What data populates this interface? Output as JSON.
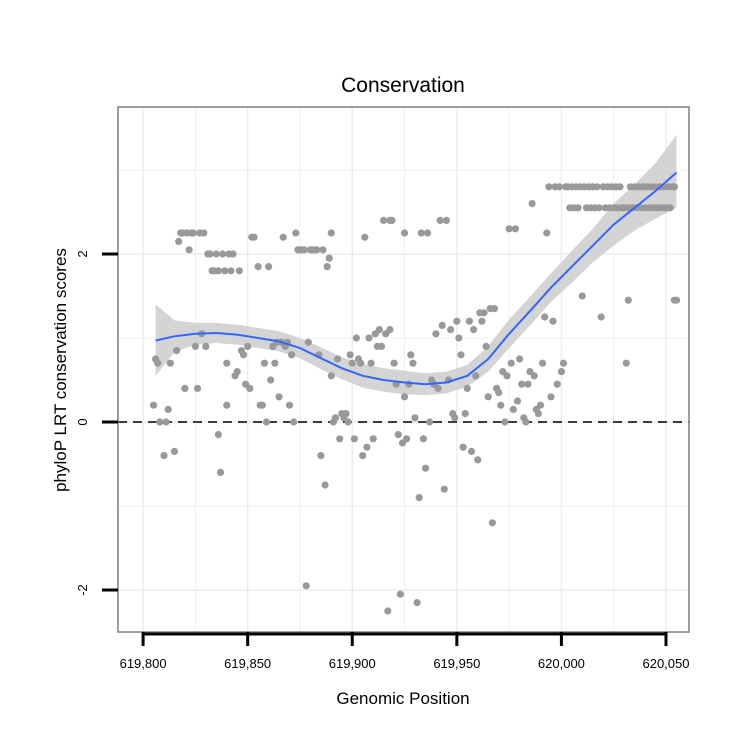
{
  "chart_data": {
    "type": "scatter",
    "title": "Conservation",
    "xlabel": "Genomic Position",
    "ylabel": "phyloP LRT conservation scores",
    "xlim": [
      619788,
      620061
    ],
    "ylim": [
      -2.5,
      3.75
    ],
    "xticks": [
      619800,
      619850,
      619900,
      619950,
      620000,
      620050
    ],
    "xtick_labels": [
      "619,800",
      "619,850",
      "619,900",
      "619,950",
      "620,000",
      "620,050"
    ],
    "yticks": [
      -2,
      0,
      2
    ],
    "ytick_labels": [
      "-2",
      "0",
      "2"
    ],
    "reference_line": {
      "y": 0,
      "style": "dashed"
    },
    "grid": true,
    "colors": {
      "points": "#999999",
      "smooth": "#3366ff",
      "band": "#d4d4d4",
      "panel_border": "#7f7f7f",
      "grid": "#ececec"
    },
    "points": [
      [
        619805,
        0.2
      ],
      [
        619806,
        0.75
      ],
      [
        619807,
        0.7
      ],
      [
        619808,
        0.0
      ],
      [
        619810,
        -0.4
      ],
      [
        619811,
        0.0
      ],
      [
        619812,
        0.15
      ],
      [
        619813,
        0.7
      ],
      [
        619815,
        -0.35
      ],
      [
        619816,
        0.85
      ],
      [
        619817,
        2.15
      ],
      [
        619818,
        2.25
      ],
      [
        619819,
        2.25
      ],
      [
        619820,
        0.4
      ],
      [
        619821,
        2.25
      ],
      [
        619822,
        2.05
      ],
      [
        619823,
        2.25
      ],
      [
        619824,
        2.25
      ],
      [
        619825,
        0.9
      ],
      [
        619826,
        0.4
      ],
      [
        619827,
        2.25
      ],
      [
        619828,
        1.05
      ],
      [
        619829,
        2.25
      ],
      [
        619830,
        0.9
      ],
      [
        619831,
        2.0
      ],
      [
        619832,
        2.0
      ],
      [
        619833,
        1.8
      ],
      [
        619834,
        1.8
      ],
      [
        619835,
        2.0
      ],
      [
        619836,
        -0.15
      ],
      [
        619836,
        1.8
      ],
      [
        619837,
        -0.6
      ],
      [
        619838,
        2.0
      ],
      [
        619839,
        1.8
      ],
      [
        619840,
        0.7
      ],
      [
        619840,
        0.2
      ],
      [
        619841,
        2.0
      ],
      [
        619842,
        1.8
      ],
      [
        619843,
        2.0
      ],
      [
        619844,
        0.55
      ],
      [
        619845,
        0.6
      ],
      [
        619846,
        1.8
      ],
      [
        619847,
        0.85
      ],
      [
        619848,
        0.8
      ],
      [
        619849,
        0.45
      ],
      [
        619850,
        0.9
      ],
      [
        619851,
        0.4
      ],
      [
        619852,
        2.2
      ],
      [
        619853,
        2.2
      ],
      [
        619855,
        1.85
      ],
      [
        619856,
        0.2
      ],
      [
        619857,
        0.2
      ],
      [
        619858,
        0.7
      ],
      [
        619859,
        0.0
      ],
      [
        619860,
        1.85
      ],
      [
        619861,
        0.5
      ],
      [
        619862,
        0.9
      ],
      [
        619863,
        0.7
      ],
      [
        619864,
        0.95
      ],
      [
        619865,
        0.3
      ],
      [
        619866,
        0.95
      ],
      [
        619867,
        2.2
      ],
      [
        619868,
        0.9
      ],
      [
        619869,
        0.95
      ],
      [
        619870,
        0.2
      ],
      [
        619871,
        0.8
      ],
      [
        619872,
        0.0
      ],
      [
        619873,
        2.25
      ],
      [
        619874,
        2.05
      ],
      [
        619875,
        2.05
      ],
      [
        619876,
        2.05
      ],
      [
        619877,
        2.05
      ],
      [
        619878,
        -1.95
      ],
      [
        619879,
        0.95
      ],
      [
        619880,
        2.05
      ],
      [
        619881,
        2.05
      ],
      [
        619882,
        2.05
      ],
      [
        619883,
        2.05
      ],
      [
        619884,
        0.8
      ],
      [
        619885,
        -0.4
      ],
      [
        619886,
        2.05
      ],
      [
        619887,
        -0.75
      ],
      [
        619888,
        1.85
      ],
      [
        619889,
        1.95
      ],
      [
        619890,
        2.25
      ],
      [
        619890,
        0.55
      ],
      [
        619891,
        0.0
      ],
      [
        619892,
        0.05
      ],
      [
        619893,
        0.75
      ],
      [
        619894,
        -0.2
      ],
      [
        619895,
        0.1
      ],
      [
        619896,
        0.05
      ],
      [
        619897,
        0.1
      ],
      [
        619898,
        0.0
      ],
      [
        619899,
        0.8
      ],
      [
        619900,
        0.7
      ],
      [
        619901,
        -0.2
      ],
      [
        619902,
        1.0
      ],
      [
        619903,
        0.75
      ],
      [
        619904,
        0.7
      ],
      [
        619905,
        -0.4
      ],
      [
        619906,
        2.2
      ],
      [
        619907,
        -0.3
      ],
      [
        619908,
        1.0
      ],
      [
        619909,
        0.7
      ],
      [
        619910,
        -0.2
      ],
      [
        619911,
        1.05
      ],
      [
        619912,
        0.9
      ],
      [
        619913,
        1.1
      ],
      [
        619914,
        0.9
      ],
      [
        619915,
        2.4
      ],
      [
        619916,
        1.05
      ],
      [
        619917,
        -2.25
      ],
      [
        619918,
        2.4
      ],
      [
        619918,
        1.1
      ],
      [
        619919,
        2.4
      ],
      [
        619920,
        0.7
      ],
      [
        619921,
        0.45
      ],
      [
        619922,
        -0.15
      ],
      [
        619923,
        -2.05
      ],
      [
        619924,
        -0.25
      ],
      [
        619925,
        0.3
      ],
      [
        619925,
        2.25
      ],
      [
        619926,
        -0.2
      ],
      [
        619927,
        0.45
      ],
      [
        619928,
        0.8
      ],
      [
        619929,
        0.7
      ],
      [
        619930,
        0.05
      ],
      [
        619931,
        -2.15
      ],
      [
        619932,
        -0.9
      ],
      [
        619933,
        2.25
      ],
      [
        619934,
        -0.2
      ],
      [
        619935,
        -0.55
      ],
      [
        619936,
        2.25
      ],
      [
        619937,
        0.0
      ],
      [
        619938,
        0.5
      ],
      [
        619939,
        0.45
      ],
      [
        619940,
        1.05
      ],
      [
        619941,
        0.4
      ],
      [
        619942,
        2.4
      ],
      [
        619943,
        1.15
      ],
      [
        619944,
        -0.8
      ],
      [
        619945,
        2.4
      ],
      [
        619946,
        0.5
      ],
      [
        619947,
        1.1
      ],
      [
        619948,
        0.1
      ],
      [
        619949,
        0.05
      ],
      [
        619950,
        1.2
      ],
      [
        619951,
        1.0
      ],
      [
        619952,
        0.8
      ],
      [
        619953,
        -0.3
      ],
      [
        619954,
        0.1
      ],
      [
        619955,
        0.4
      ],
      [
        619956,
        1.2
      ],
      [
        619957,
        -0.35
      ],
      [
        619958,
        1.1
      ],
      [
        619959,
        0.55
      ],
      [
        619960,
        -0.45
      ],
      [
        619961,
        1.3
      ],
      [
        619962,
        1.2
      ],
      [
        619963,
        1.3
      ],
      [
        619964,
        0.9
      ],
      [
        619965,
        0.3
      ],
      [
        619966,
        1.35
      ],
      [
        619967,
        -1.2
      ],
      [
        619968,
        1.35
      ],
      [
        619969,
        0.4
      ],
      [
        619970,
        0.35
      ],
      [
        619971,
        0.2
      ],
      [
        619972,
        0.6
      ],
      [
        619973,
        0.0
      ],
      [
        619974,
        0.55
      ],
      [
        619975,
        2.3
      ],
      [
        619976,
        0.7
      ],
      [
        619977,
        0.15
      ],
      [
        619978,
        2.3
      ],
      [
        619979,
        0.25
      ],
      [
        619980,
        0.75
      ],
      [
        619981,
        0.45
      ],
      [
        619982,
        0.05
      ],
      [
        619983,
        0.0
      ],
      [
        619984,
        0.45
      ],
      [
        619985,
        0.6
      ],
      [
        619986,
        2.6
      ],
      [
        619987,
        0.55
      ],
      [
        619988,
        0.15
      ],
      [
        619989,
        0.1
      ],
      [
        619990,
        0.2
      ],
      [
        619991,
        0.7
      ],
      [
        619992,
        1.25
      ],
      [
        619993,
        2.25
      ],
      [
        619994,
        2.8
      ],
      [
        619995,
        0.3
      ],
      [
        619996,
        1.2
      ],
      [
        619997,
        2.8
      ],
      [
        619998,
        0.45
      ],
      [
        619999,
        2.8
      ],
      [
        620000,
        0.6
      ],
      [
        620001,
        0.7
      ],
      [
        620002,
        2.8
      ],
      [
        620003,
        2.8
      ],
      [
        620004,
        2.55
      ],
      [
        620005,
        2.8
      ],
      [
        620006,
        2.55
      ],
      [
        620007,
        2.8
      ],
      [
        620008,
        2.55
      ],
      [
        620009,
        2.8
      ],
      [
        620010,
        1.5
      ],
      [
        620011,
        2.8
      ],
      [
        620012,
        2.55
      ],
      [
        620013,
        2.8
      ],
      [
        620014,
        2.55
      ],
      [
        620015,
        2.8
      ],
      [
        620016,
        2.55
      ],
      [
        620017,
        2.8
      ],
      [
        620018,
        2.55
      ],
      [
        620019,
        1.25
      ],
      [
        620020,
        2.8
      ],
      [
        620021,
        2.55
      ],
      [
        620022,
        2.8
      ],
      [
        620023,
        2.55
      ],
      [
        620024,
        2.8
      ],
      [
        620025,
        2.55
      ],
      [
        620026,
        2.8
      ],
      [
        620027,
        2.55
      ],
      [
        620028,
        2.8
      ],
      [
        620029,
        2.55
      ],
      [
        620030,
        2.55
      ],
      [
        620031,
        0.7
      ],
      [
        620032,
        1.45
      ],
      [
        620032,
        2.55
      ],
      [
        620033,
        2.8
      ],
      [
        620034,
        2.55
      ],
      [
        620035,
        2.8
      ],
      [
        620036,
        2.55
      ],
      [
        620037,
        2.8
      ],
      [
        620038,
        2.55
      ],
      [
        620039,
        2.8
      ],
      [
        620040,
        2.55
      ],
      [
        620041,
        2.8
      ],
      [
        620042,
        2.55
      ],
      [
        620043,
        2.8
      ],
      [
        620044,
        2.55
      ],
      [
        620045,
        2.8
      ],
      [
        620046,
        2.55
      ],
      [
        620047,
        2.8
      ],
      [
        620048,
        2.55
      ],
      [
        620049,
        2.8
      ],
      [
        620050,
        2.55
      ],
      [
        620051,
        2.8
      ],
      [
        620052,
        2.55
      ],
      [
        620053,
        2.8
      ],
      [
        620054,
        2.8
      ],
      [
        620054,
        1.45
      ],
      [
        620055,
        1.45
      ]
    ],
    "smooth_line": {
      "x": [
        619806,
        619815,
        619825,
        619835,
        619845,
        619855,
        619865,
        619875,
        619885,
        619895,
        619905,
        619915,
        619925,
        619935,
        619945,
        619955,
        619965,
        619975,
        619985,
        619995,
        620005,
        620015,
        620025,
        620035,
        620045,
        620055
      ],
      "y": [
        0.97,
        1.02,
        1.05,
        1.06,
        1.04,
        1.0,
        0.96,
        0.88,
        0.76,
        0.64,
        0.55,
        0.5,
        0.47,
        0.45,
        0.47,
        0.55,
        0.75,
        1.05,
        1.32,
        1.6,
        1.85,
        2.1,
        2.35,
        2.55,
        2.75,
        2.97
      ],
      "ci_lower": [
        0.55,
        0.83,
        0.92,
        0.94,
        0.92,
        0.88,
        0.84,
        0.76,
        0.63,
        0.51,
        0.41,
        0.36,
        0.33,
        0.32,
        0.34,
        0.42,
        0.6,
        0.88,
        1.15,
        1.43,
        1.66,
        1.9,
        2.1,
        2.28,
        2.42,
        2.55
      ],
      "ci_upper": [
        1.4,
        1.21,
        1.18,
        1.18,
        1.16,
        1.12,
        1.08,
        1.0,
        0.89,
        0.77,
        0.69,
        0.64,
        0.61,
        0.58,
        0.6,
        0.68,
        0.9,
        1.22,
        1.49,
        1.77,
        2.04,
        2.3,
        2.6,
        2.83,
        3.08,
        3.42
      ]
    }
  }
}
